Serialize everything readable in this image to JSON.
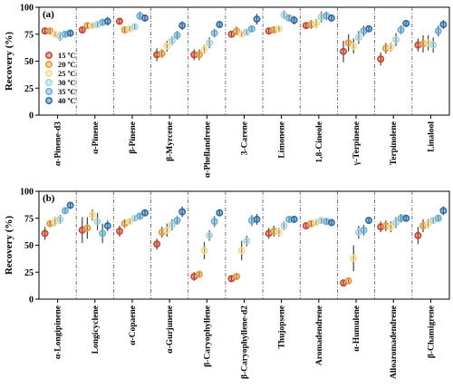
{
  "chart_data": [
    {
      "type": "scatter",
      "panel_label": "(a)",
      "ylabel": "Recovery (%)",
      "ylim": [
        0,
        100
      ],
      "yticks": [
        0,
        25,
        50,
        75,
        100
      ],
      "categories": [
        "α-Pinene-d3",
        "α-Pinene",
        "β-Pinene",
        "β-Myrcene",
        "α-Phellandrene",
        "3-Carene",
        "Limonene",
        "1,8-Cineole",
        "γ-Terpinene",
        "Terpinolene",
        "Linalool"
      ],
      "series": [
        {
          "name": "15 ºC",
          "color": "#c8452c",
          "values": [
            78,
            79,
            87,
            56,
            56,
            75,
            78,
            83,
            59,
            52,
            65
          ]
        },
        {
          "name": "20 ºC",
          "color": "#e69a3c",
          "values": [
            78,
            83,
            79,
            57,
            56,
            78,
            79,
            84,
            67,
            62,
            66
          ]
        },
        {
          "name": "25 ºC",
          "color": "#f5dc8c",
          "values": [
            75,
            83,
            80,
            64,
            61,
            75,
            80,
            85,
            64,
            63,
            67
          ]
        },
        {
          "name": "30 ºC",
          "color": "#a8d4da",
          "values": [
            73,
            84,
            82,
            69,
            67,
            77,
            93,
            91,
            72,
            70,
            65
          ]
        },
        {
          "name": "35 ºC",
          "color": "#6aaed6",
          "values": [
            75,
            86,
            92,
            74,
            76,
            80,
            90,
            92,
            78,
            79,
            78
          ]
        },
        {
          "name": "40 ºC",
          "color": "#2c6ea8",
          "values": [
            76,
            87,
            90,
            83,
            84,
            89,
            88,
            90,
            80,
            85,
            84
          ]
        }
      ],
      "errors": [
        [
          2,
          2,
          3,
          6,
          5,
          3,
          2,
          3,
          10,
          6,
          6
        ],
        [
          2,
          2,
          3,
          4,
          5,
          4,
          3,
          4,
          8,
          5,
          8
        ],
        [
          3,
          2,
          2,
          5,
          4,
          3,
          3,
          4,
          7,
          4,
          7
        ],
        [
          4,
          2,
          3,
          4,
          5,
          3,
          4,
          5,
          6,
          6,
          7
        ],
        [
          3,
          3,
          4,
          4,
          4,
          3,
          3,
          4,
          5,
          4,
          5
        ],
        [
          3,
          4,
          3,
          4,
          3,
          5,
          4,
          3,
          3,
          3,
          4
        ]
      ]
    },
    {
      "type": "scatter",
      "panel_label": "(b)",
      "ylabel": "Recovery (%)",
      "ylim": [
        0,
        100
      ],
      "yticks": [
        0,
        25,
        50,
        75,
        100
      ],
      "categories": [
        "α-Longipinene",
        "Longicyclene",
        "α-Copaene",
        "α-Gurjunene",
        "β-Caryophyllene",
        "β-Caryophyllene-d2",
        "Thujopsene",
        "Aromadendrene",
        "α-Humulene",
        "Alloaromadendrene",
        "β-Chamigrene"
      ],
      "series": [
        {
          "name": "15 ºC",
          "color": "#c8452c",
          "values": [
            61,
            64,
            63,
            51,
            21,
            19,
            61,
            68,
            15,
            67,
            59
          ]
        },
        {
          "name": "20 ºC",
          "color": "#e69a3c",
          "values": [
            70,
            66,
            70,
            62,
            23,
            21,
            63,
            70,
            17,
            68,
            68
          ]
        },
        {
          "name": "25 ºC",
          "color": "#f5dc8c",
          "values": [
            72,
            78,
            72,
            64,
            45,
            45,
            62,
            71,
            38,
            67,
            70
          ]
        },
        {
          "name": "30 ºC",
          "color": "#a8d4da",
          "values": [
            74,
            72,
            75,
            69,
            59,
            54,
            68,
            73,
            62,
            71,
            73
          ]
        },
        {
          "name": "35 ºC",
          "color": "#6aaed6",
          "values": [
            82,
            61,
            77,
            73,
            72,
            73,
            74,
            72,
            64,
            75,
            75
          ]
        },
        {
          "name": "40 ºC",
          "color": "#2c6ea8",
          "values": [
            87,
            68,
            80,
            81,
            80,
            74,
            74,
            71,
            73,
            75,
            82
          ]
        }
      ],
      "errors": [
        [
          6,
          12,
          5,
          5,
          4,
          3,
          5,
          3,
          3,
          5,
          8
        ],
        [
          3,
          10,
          4,
          5,
          3,
          3,
          5,
          3,
          3,
          5,
          6
        ],
        [
          4,
          5,
          3,
          6,
          8,
          9,
          4,
          3,
          12,
          5,
          4
        ],
        [
          4,
          8,
          3,
          5,
          5,
          5,
          4,
          2,
          6,
          5,
          3
        ],
        [
          3,
          9,
          3,
          4,
          5,
          5,
          3,
          2,
          5,
          4,
          3
        ],
        [
          3,
          5,
          3,
          5,
          3,
          5,
          3,
          2,
          3,
          3,
          4
        ]
      ]
    }
  ],
  "legend_position": "upper-left of panel (a)"
}
